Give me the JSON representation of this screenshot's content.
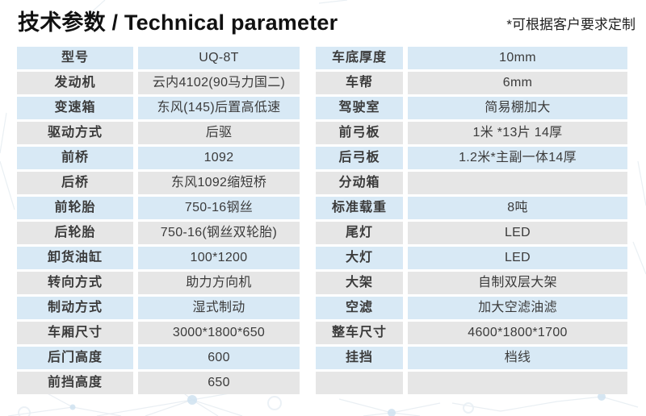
{
  "header": {
    "title": "技术参数 / Technical parameter",
    "note": "*可根据客户要求定制"
  },
  "colors": {
    "row_blue": "#d8e9f5",
    "row_gray": "#e6e6e6",
    "text": "#3b3b3b",
    "title": "#111111"
  },
  "tables": {
    "left": {
      "rows": [
        {
          "label": "型号",
          "value": "UQ-8T"
        },
        {
          "label": "发动机",
          "value": "云内4102(90马力国二)"
        },
        {
          "label": "变速箱",
          "value": "东风(145)后置高低速"
        },
        {
          "label": "驱动方式",
          "value": "后驱"
        },
        {
          "label": "前桥",
          "value": "1092"
        },
        {
          "label": "后桥",
          "value": "东风1092缩短桥"
        },
        {
          "label": "前轮胎",
          "value": "750-16钢丝"
        },
        {
          "label": "后轮胎",
          "value": "750-16(钢丝双轮胎)"
        },
        {
          "label": "卸货油缸",
          "value": "100*1200"
        },
        {
          "label": "转向方式",
          "value": "助力方向机"
        },
        {
          "label": "制动方式",
          "value": "湿式制动"
        },
        {
          "label": "车厢尺寸",
          "value": "3000*1800*650"
        },
        {
          "label": "后门高度",
          "value": "600"
        },
        {
          "label": "前挡高度",
          "value": "650"
        }
      ]
    },
    "right": {
      "rows": [
        {
          "label": "车底厚度",
          "value": "10mm"
        },
        {
          "label": "车帮",
          "value": "6mm"
        },
        {
          "label": "驾驶室",
          "value": "简易棚加大"
        },
        {
          "label": "前弓板",
          "value": "1米 *13片 14厚"
        },
        {
          "label": "后弓板",
          "value": "1.2米*主副一体14厚"
        },
        {
          "label": "分动箱",
          "value": ""
        },
        {
          "label": "标准载重",
          "value": "8吨"
        },
        {
          "label": "尾灯",
          "value": "LED"
        },
        {
          "label": "大灯",
          "value": "LED"
        },
        {
          "label": "大架",
          "value": "自制双层大架"
        },
        {
          "label": "空滤",
          "value": "加大空滤油滤"
        },
        {
          "label": "整车尺寸",
          "value": "4600*1800*1700"
        },
        {
          "label": "挂挡",
          "value": "档线"
        },
        {
          "label": "",
          "value": ""
        }
      ]
    }
  }
}
